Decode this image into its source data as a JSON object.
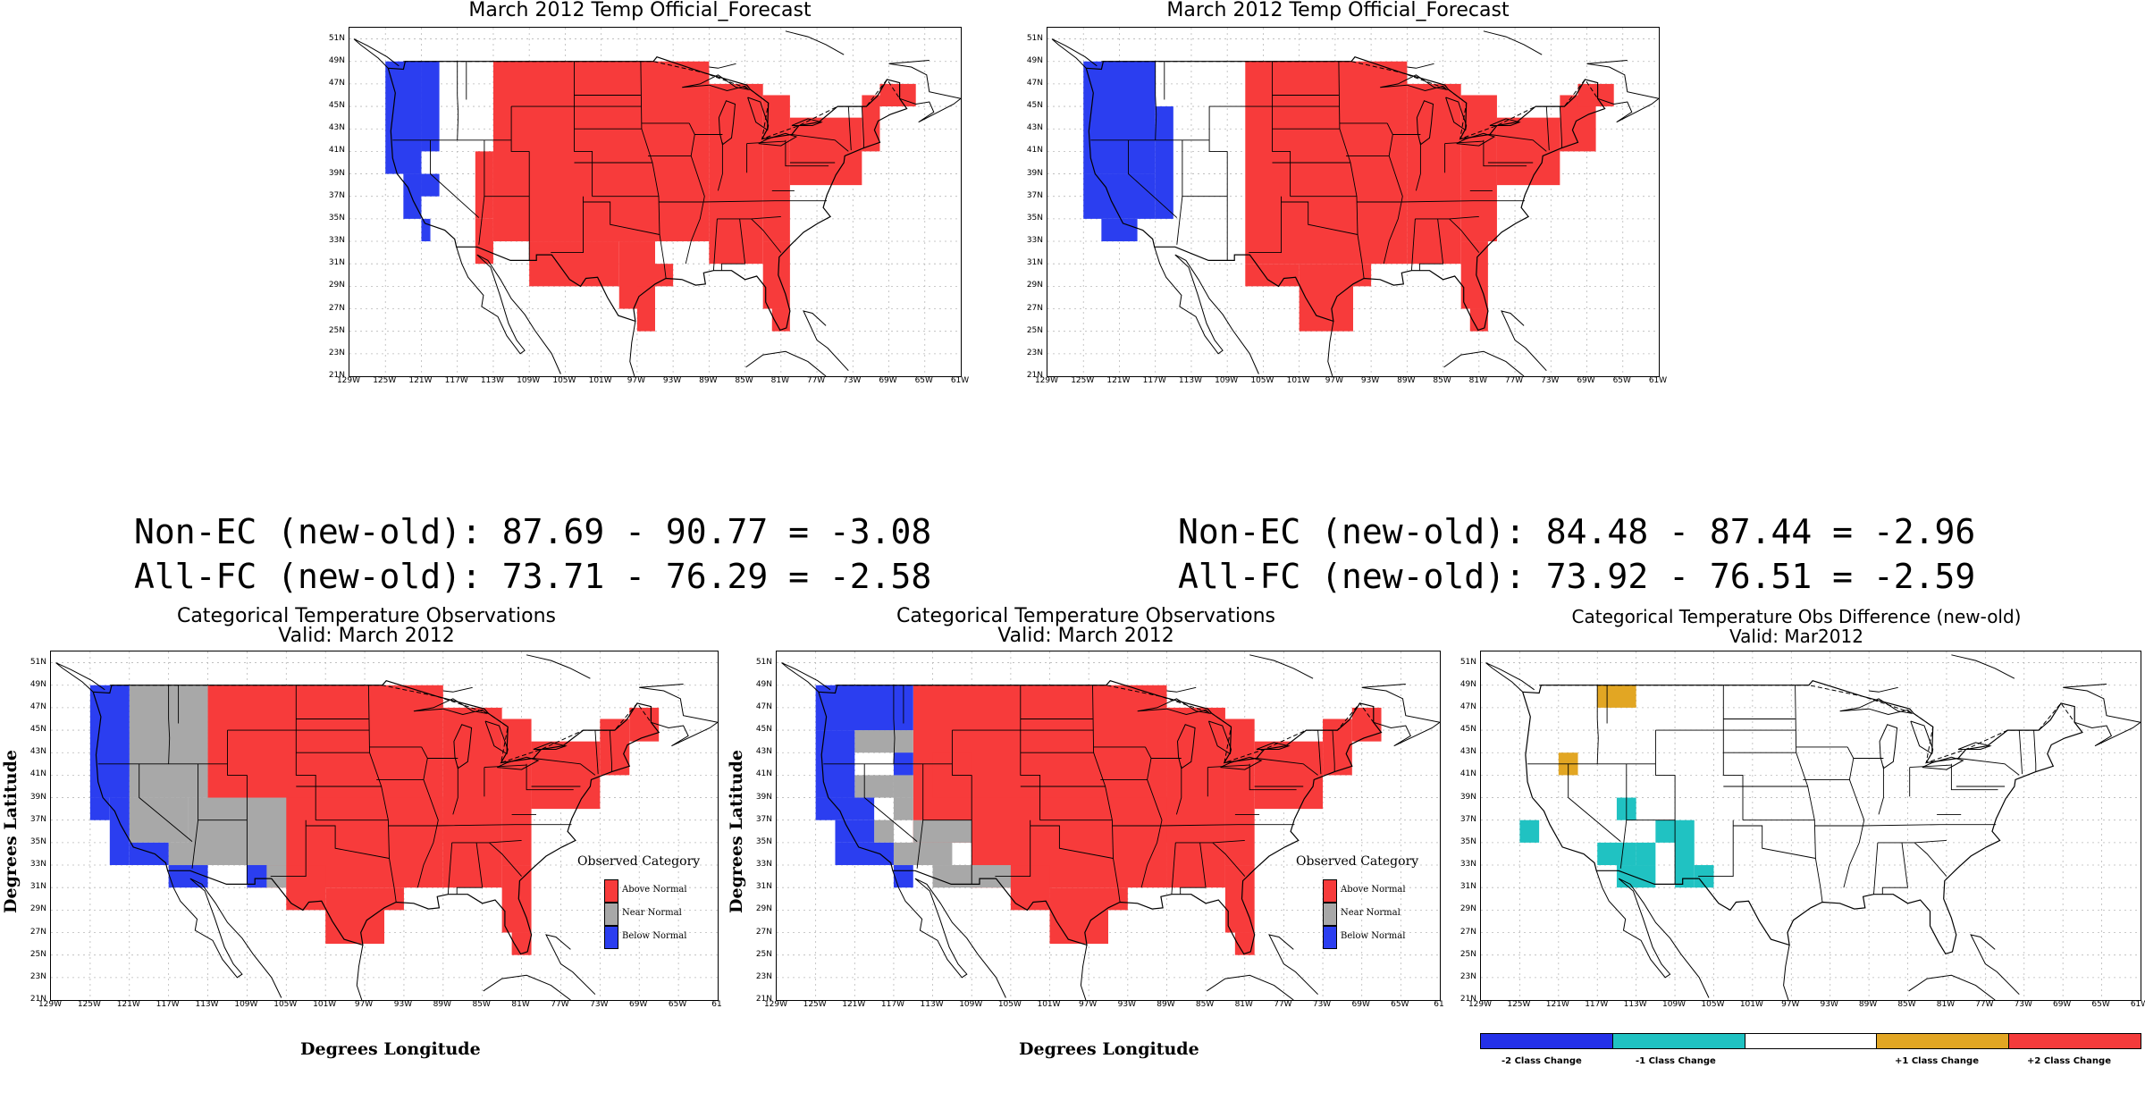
{
  "colors": {
    "above": "#f73b3b",
    "near": "#a8a8a8",
    "below": "#2b3ef0",
    "minus1": "#20c2c2",
    "plus1": "#e2a623",
    "plus2": "#f43b3b",
    "minus2": "#2431e8"
  },
  "lat_ticks": [
    "51N",
    "49N",
    "47N",
    "45N",
    "43N",
    "41N",
    "39N",
    "37N",
    "35N",
    "33N",
    "31N",
    "29N",
    "27N",
    "25N",
    "23N",
    "21N"
  ],
  "lon_ticks": [
    "129W",
    "125W",
    "121W",
    "117W",
    "113W",
    "109W",
    "105W",
    "101W",
    "97W",
    "93W",
    "89W",
    "85W",
    "81W",
    "77W",
    "73W",
    "69W",
    "65W",
    "61W"
  ],
  "lon_ticks_trunc": [
    "129W",
    "125W",
    "121W",
    "117W",
    "113W",
    "109W",
    "105W",
    "101W",
    "97W",
    "93W",
    "89W",
    "85W",
    "81W",
    "77W",
    "73W",
    "69W",
    "65W",
    "61"
  ],
  "panels": {
    "fc_old": {
      "title": "March 2012 Temp Official_Forecast"
    },
    "fc_new": {
      "title": "March 2012 Temp Official_Forecast"
    },
    "obs_old": {
      "title1": "Categorical Temperature Observations",
      "title2": "Valid: March 2012"
    },
    "obs_new": {
      "title1": "Categorical Temperature Observations",
      "title2": "Valid: March 2012"
    },
    "obs_diff": {
      "title1": "Categorical Temperature Obs Difference (new-old)",
      "title2": "Valid: Mar2012"
    }
  },
  "stats": {
    "left_nonec": "Non-EC (new-old): 87.69 - 90.77 = -3.08",
    "left_allfc": "All-FC (new-old): 73.71 - 76.29 = -2.58",
    "right_nonec": "Non-EC (new-old): 84.48 - 87.44 = -2.96",
    "right_allfc": "All-FC (new-old): 73.92 - 76.51 = -2.59"
  },
  "axes": {
    "ylabel": "Degrees Latitude",
    "xlabel": "Degrees Longitude"
  },
  "legend": {
    "title": "Observed Category",
    "above": "Above Normal",
    "near": "Near Normal",
    "below": "Below Normal"
  },
  "colorbar": {
    "m2": "-2 Class Change",
    "m1": "-1 Class Change",
    "p1": "+1 Class Change",
    "p2": "+2 Class Change"
  },
  "map_data": {
    "fc_old": {
      "above": [
        [
          -113,
          49,
          -89,
          33
        ],
        [
          -89,
          47,
          -83,
          31
        ],
        [
          -83,
          46,
          -80,
          33
        ],
        [
          -80,
          44,
          -72,
          38
        ],
        [
          -72,
          46,
          -70,
          41
        ],
        [
          -70,
          47,
          -66,
          45
        ],
        [
          -115,
          35,
          -113,
          31
        ],
        [
          -115,
          41,
          -113,
          35
        ],
        [
          -109,
          33,
          -99,
          29
        ],
        [
          -99,
          33,
          -95,
          27
        ],
        [
          -95,
          31,
          -93,
          29
        ],
        [
          -97,
          29,
          -95,
          25
        ],
        [
          -83,
          33,
          -80,
          27
        ],
        [
          -82,
          27,
          -80,
          25
        ]
      ],
      "below": [
        [
          -125,
          49,
          -121,
          39
        ],
        [
          -121,
          49,
          -119,
          41
        ],
        [
          -123,
          39,
          -121,
          35
        ],
        [
          -121,
          39,
          -119,
          37
        ],
        [
          -121,
          35,
          -120,
          33
        ]
      ]
    },
    "fc_new": {
      "above": [
        [
          -107,
          49,
          -89,
          31
        ],
        [
          -89,
          47,
          -83,
          31
        ],
        [
          -83,
          46,
          -79,
          33
        ],
        [
          -79,
          44,
          -72,
          38
        ],
        [
          -72,
          46,
          -68,
          41
        ],
        [
          -70,
          47,
          -66,
          45
        ],
        [
          -107,
          31,
          -101,
          29
        ],
        [
          -101,
          31,
          -95,
          25
        ],
        [
          -95,
          31,
          -93,
          29
        ],
        [
          -83,
          33,
          -80,
          27
        ],
        [
          -82,
          27,
          -80,
          25
        ]
      ],
      "below": [
        [
          -125,
          49,
          -117,
          39
        ],
        [
          -125,
          39,
          -117,
          35
        ],
        [
          -123,
          35,
          -119,
          33
        ],
        [
          -117,
          45,
          -115,
          35
        ]
      ]
    },
    "obs_old": {
      "above": [
        [
          -113,
          49,
          -89,
          35
        ],
        [
          -109,
          39,
          -89,
          31
        ],
        [
          -89,
          47,
          -83,
          31
        ],
        [
          -83,
          46,
          -80,
          33
        ],
        [
          -80,
          44,
          -73,
          38
        ],
        [
          -73,
          46,
          -70,
          41
        ],
        [
          -70,
          47,
          -67,
          44
        ],
        [
          -105,
          33,
          -101,
          29
        ],
        [
          -101,
          31,
          -95,
          26
        ],
        [
          -95,
          31,
          -93,
          29
        ],
        [
          -83,
          33,
          -80,
          27
        ],
        [
          -82,
          27,
          -80,
          25
        ]
      ],
      "near": [
        [
          -121,
          49,
          -113,
          39
        ],
        [
          -123,
          45,
          -121,
          41
        ],
        [
          -121,
          39,
          -115,
          35
        ],
        [
          -115,
          39,
          -105,
          33
        ],
        [
          -117,
          35,
          -113,
          33
        ],
        [
          -109,
          33,
          -105,
          31
        ]
      ],
      "below": [
        [
          -125,
          49,
          -121,
          39
        ],
        [
          -125,
          39,
          -123,
          37
        ],
        [
          -123,
          39,
          -121,
          33
        ],
        [
          -121,
          35,
          -117,
          33
        ],
        [
          -117,
          33,
          -113,
          31
        ],
        [
          -109,
          33,
          -107,
          31
        ]
      ]
    },
    "obs_new": {
      "above": [
        [
          -115,
          49,
          -89,
          35
        ],
        [
          -113,
          43,
          -109,
          39
        ],
        [
          -109,
          39,
          -89,
          31
        ],
        [
          -89,
          47,
          -83,
          31
        ],
        [
          -83,
          46,
          -80,
          33
        ],
        [
          -80,
          44,
          -73,
          38
        ],
        [
          -73,
          46,
          -70,
          41
        ],
        [
          -70,
          47,
          -67,
          44
        ],
        [
          -105,
          33,
          -101,
          29
        ],
        [
          -101,
          31,
          -95,
          26
        ],
        [
          -95,
          31,
          -93,
          29
        ],
        [
          -83,
          33,
          -80,
          27
        ],
        [
          -82,
          27,
          -80,
          25
        ]
      ],
      "near": [
        [
          -121,
          45,
          -117,
          43
        ],
        [
          -117,
          45,
          -115,
          39
        ],
        [
          -121,
          41,
          -117,
          39
        ],
        [
          -117,
          39,
          -115,
          37
        ],
        [
          -119,
          37,
          -117,
          35
        ],
        [
          -115,
          37,
          -109,
          35
        ],
        [
          -117,
          35,
          -111,
          33
        ],
        [
          -113,
          33,
          -105,
          31
        ]
      ],
      "below": [
        [
          -125,
          49,
          -115,
          45
        ],
        [
          -125,
          45,
          -121,
          39
        ],
        [
          -117,
          43,
          -115,
          41
        ],
        [
          -125,
          39,
          -119,
          37
        ],
        [
          -123,
          37,
          -119,
          35
        ],
        [
          -123,
          35,
          -117,
          33
        ],
        [
          -117,
          33,
          -115,
          31
        ]
      ]
    },
    "obs_diff": {
      "plus1": [
        [
          -117,
          49,
          -113,
          47
        ],
        [
          -121,
          43,
          -119,
          41
        ]
      ],
      "minus1": [
        [
          -125,
          37,
          -123,
          35
        ],
        [
          -115,
          39,
          -113,
          37
        ],
        [
          -117,
          35,
          -113,
          33
        ],
        [
          -111,
          37,
          -109,
          35
        ],
        [
          -109,
          37,
          -107,
          31
        ],
        [
          -107,
          33,
          -105,
          31
        ],
        [
          -115,
          33,
          -111,
          31
        ],
        [
          -113,
          35,
          -111,
          33
        ]
      ]
    }
  }
}
